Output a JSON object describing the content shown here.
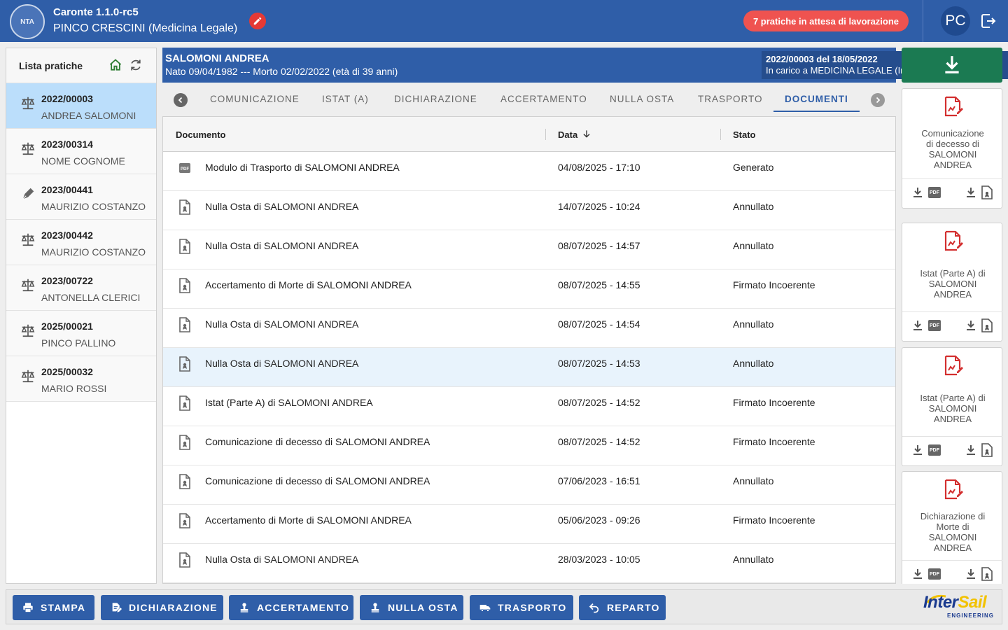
{
  "app": {
    "title": "Caronte 1.1.0-rc5",
    "user": "PINCO CRESCINI (Medicina Legale)",
    "pending_badge": "7 pratiche in attesa di lavorazione",
    "avatar_initials": "PC",
    "logo_text": "NTA"
  },
  "colors": {
    "primary": "#2f5ea8",
    "danger": "#ef5350",
    "success": "#1b7a52",
    "selected_row": "#bbdefb"
  },
  "sidebar": {
    "title": "Lista pratiche",
    "items": [
      {
        "number": "2022/00003",
        "name": "ANDREA SALOMONI",
        "icon": "scale-icon",
        "active": true
      },
      {
        "number": "2023/00314",
        "name": "NOME COGNOME",
        "icon": "scale-icon"
      },
      {
        "number": "2023/00441",
        "name": "MAURIZIO COSTANZO",
        "icon": "pen-icon"
      },
      {
        "number": "2023/00442",
        "name": "MAURIZIO COSTANZO",
        "icon": "scale-icon"
      },
      {
        "number": "2023/00722",
        "name": "ANTONELLA CLERICI",
        "icon": "scale-icon"
      },
      {
        "number": "2025/00021",
        "name": "PINCO PALLINO",
        "icon": "scale-icon"
      },
      {
        "number": "2025/00032",
        "name": "MARIO ROSSI",
        "icon": "scale-icon"
      }
    ]
  },
  "patient": {
    "name": "SALOMONI ANDREA",
    "dates": "Nato 09/04/1982 --- Morto 02/02/2022 (età di 39 anni)",
    "case_line1": "2022/00003 del 18/05/2022",
    "case_line2": "In carico a MEDICINA LEGALE (Invia Pratica a Comune)"
  },
  "tabs": [
    {
      "label": "COMUNICAZIONE"
    },
    {
      "label": "ISTAT (A)"
    },
    {
      "label": "DICHIARAZIONE"
    },
    {
      "label": "ACCERTAMENTO"
    },
    {
      "label": "NULLA OSTA"
    },
    {
      "label": "TRASPORTO"
    },
    {
      "label": "DOCUMENTI",
      "active": true
    }
  ],
  "table": {
    "headers": {
      "documento": "Documento",
      "data": "Data",
      "stato": "Stato"
    },
    "rows": [
      {
        "documento": "Modulo di Trasporto di SALOMONI ANDREA",
        "data": "04/08/2025 - 17:10",
        "stato": "Generato",
        "icon": "pdf-icon"
      },
      {
        "documento": "Nulla Osta di SALOMONI ANDREA",
        "data": "14/07/2025 - 10:24",
        "stato": "Annullato",
        "icon": "file-sign-icon"
      },
      {
        "documento": "Nulla Osta di SALOMONI ANDREA",
        "data": "08/07/2025 - 14:57",
        "stato": "Annullato",
        "icon": "file-sign-icon"
      },
      {
        "documento": "Accertamento di Morte di SALOMONI ANDREA",
        "data": "08/07/2025 - 14:55",
        "stato": "Firmato Incoerente",
        "icon": "file-sign-icon"
      },
      {
        "documento": "Nulla Osta di SALOMONI ANDREA",
        "data": "08/07/2025 - 14:54",
        "stato": "Annullato",
        "icon": "file-sign-icon"
      },
      {
        "documento": "Nulla Osta di SALOMONI ANDREA",
        "data": "08/07/2025 - 14:53",
        "stato": "Annullato",
        "icon": "file-sign-icon",
        "highlighted": true
      },
      {
        "documento": "Istat (Parte A) di SALOMONI ANDREA",
        "data": "08/07/2025 - 14:52",
        "stato": "Firmato Incoerente",
        "icon": "file-sign-icon"
      },
      {
        "documento": "Comunicazione di decesso di SALOMONI ANDREA",
        "data": "08/07/2025 - 14:52",
        "stato": "Firmato Incoerente",
        "icon": "file-sign-icon"
      },
      {
        "documento": "Comunicazione di decesso di SALOMONI ANDREA",
        "data": "07/06/2023 - 16:51",
        "stato": "Annullato",
        "icon": "file-sign-icon"
      },
      {
        "documento": "Accertamento di Morte di SALOMONI ANDREA",
        "data": "05/06/2023 - 09:26",
        "stato": "Firmato Incoerente",
        "icon": "file-sign-icon"
      },
      {
        "documento": "Nulla Osta di SALOMONI ANDREA",
        "data": "28/03/2023 - 10:05",
        "stato": "Annullato",
        "icon": "file-sign-icon"
      }
    ]
  },
  "doc_cards": [
    {
      "title_lines": [
        "Comunicazione",
        "di decesso di",
        "SALOMONI",
        "ANDREA"
      ]
    },
    {
      "title_lines": [
        "Istat (Parte A) di",
        "SALOMONI",
        "ANDREA"
      ]
    },
    {
      "title_lines": [
        "Istat (Parte A) di",
        "SALOMONI",
        "ANDREA"
      ]
    },
    {
      "title_lines": [
        "Dichiarazione di",
        "Morte di",
        "SALOMONI",
        "ANDREA"
      ]
    }
  ],
  "pdf_badge": "PDF",
  "bottom_buttons": [
    {
      "label": "STAMPA",
      "icon": "printer-icon"
    },
    {
      "label": "DICHIARAZIONE",
      "icon": "document-edit-icon"
    },
    {
      "label": "ACCERTAMENTO",
      "icon": "stamp-icon"
    },
    {
      "label": "NULLA OSTA",
      "icon": "stamp-icon"
    },
    {
      "label": "TRASPORTO",
      "icon": "truck-icon"
    },
    {
      "label": "REPARTO",
      "icon": "undo-icon"
    }
  ],
  "brand": {
    "name_part1": "Inter",
    "name_part2": "Sail",
    "tagline": "ENGINEERING"
  }
}
